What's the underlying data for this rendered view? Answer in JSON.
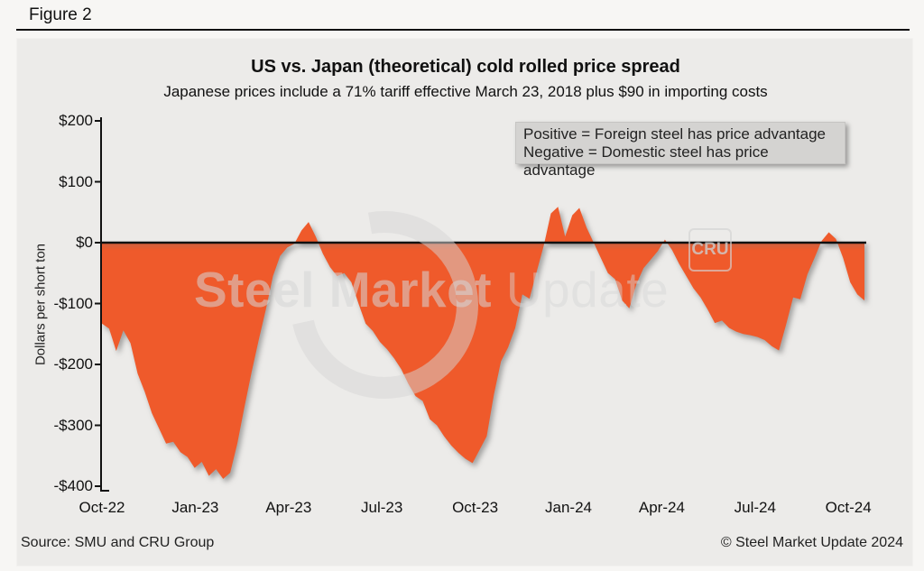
{
  "figure_label": "Figure 2",
  "title": "US vs. Japan (theoretical) cold rolled price spread",
  "subtitle": "Japanese prices include a 71% tariff effective March 23, 2018 plus $90 in importing costs",
  "legend": {
    "line1": "Positive = Foreign steel has price advantage",
    "line2": "Negative = Domestic steel has price advantage"
  },
  "watermark": {
    "bold": "Steel Market ",
    "light": "Update",
    "badge": "CRU"
  },
  "footer": {
    "source": "Source: SMU and CRU Group",
    "copyright": "© Steel Market Update 2024"
  },
  "colors": {
    "area": "#ef5a2b",
    "axis": "#111111",
    "panel_bg": "#ecebe9",
    "page_bg": "#f7f6f4",
    "legend_bg": "#d4d3d1",
    "watermark": "rgba(213,213,213,0.5)"
  },
  "chart_data": {
    "type": "area",
    "title": "US vs. Japan (theoretical) cold rolled price spread",
    "subtitle": "Japanese prices include a 71% tariff effective March 23, 2018 plus $90 in importing costs",
    "ylabel": "Dollars per short ton",
    "xlabel": "",
    "ylim": [
      -400,
      200
    ],
    "grid": false,
    "legend_position": "top-right",
    "y_ticks": [
      "$200",
      "$100",
      "$0",
      "-$100",
      "-$200",
      "-$300",
      "-$400"
    ],
    "y_tick_values": [
      200,
      100,
      0,
      -100,
      -200,
      -300,
      -400
    ],
    "x_ticks": [
      "Oct-22",
      "Jan-23",
      "Apr-23",
      "Jul-23",
      "Oct-23",
      "Jan-24",
      "Apr-24",
      "Jul-24",
      "Oct-24"
    ],
    "frequency": "weekly",
    "x_start": "Oct-22",
    "x_end": "Nov-24",
    "series": [
      {
        "name": "US minus Japan cold rolled price spread ($/short ton)",
        "values": [
          -133,
          -141,
          -178,
          -144,
          -165,
          -215,
          -245,
          -280,
          -305,
          -330,
          -327,
          -344,
          -352,
          -370,
          -360,
          -383,
          -372,
          -388,
          -378,
          -330,
          -270,
          -213,
          -160,
          -110,
          -55,
          -22,
          -8,
          -2,
          20,
          34,
          10,
          -18,
          -40,
          -55,
          -50,
          -65,
          -100,
          -133,
          -145,
          -163,
          -175,
          -190,
          -208,
          -232,
          -252,
          -260,
          -290,
          -300,
          -318,
          -333,
          -345,
          -355,
          -362,
          -340,
          -318,
          -250,
          -195,
          -172,
          -140,
          -85,
          -92,
          -48,
          -5,
          48,
          59,
          10,
          45,
          57,
          25,
          0,
          -25,
          -50,
          -60,
          -95,
          -108,
          -68,
          -42,
          -28,
          -14,
          5,
          -12,
          -35,
          -55,
          -75,
          -90,
          -110,
          -132,
          -128,
          -140,
          -146,
          -150,
          -152,
          -155,
          -160,
          -170,
          -177,
          -135,
          -90,
          -93,
          -52,
          -25,
          3,
          17,
          6,
          -25,
          -65,
          -85,
          -95
        ]
      }
    ]
  }
}
